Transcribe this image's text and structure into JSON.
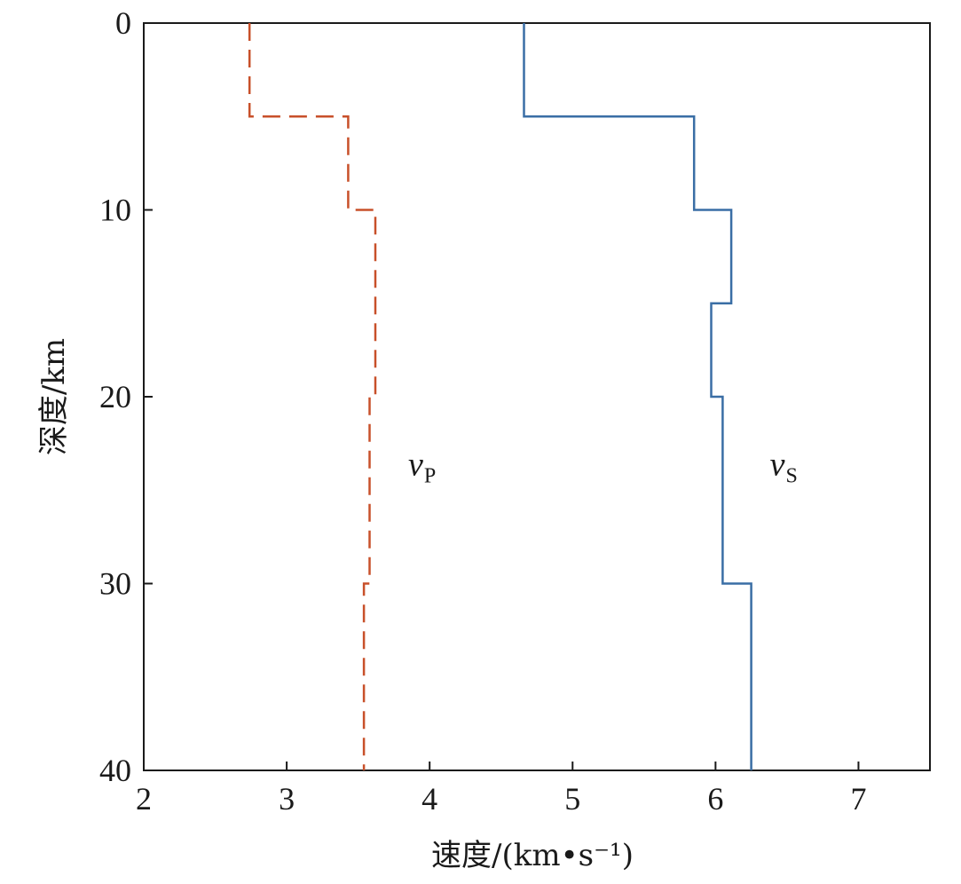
{
  "chart_data": {
    "type": "line",
    "xlabel": "速度/(km•s⁻¹)",
    "ylabel": "深度/km",
    "xlim": [
      2,
      7.5
    ],
    "ylim": [
      0,
      40
    ],
    "y_inverted": true,
    "xticks": [
      2,
      3,
      4,
      5,
      6,
      7
    ],
    "yticks": [
      0,
      10,
      20,
      30,
      40
    ],
    "grid": false,
    "series": [
      {
        "name": "vP",
        "label_main": "v",
        "label_sub": "P",
        "label_pos": [
          3.85,
          24.2
        ],
        "style": "dashed",
        "color": "#c8502a",
        "steps": [
          {
            "top": 0,
            "bottom": 5,
            "velocity": 2.74
          },
          {
            "top": 5,
            "bottom": 10,
            "velocity": 3.43
          },
          {
            "top": 10,
            "bottom": 20,
            "velocity": 3.62
          },
          {
            "top": 20,
            "bottom": 30,
            "velocity": 3.58
          },
          {
            "top": 30,
            "bottom": 40,
            "velocity": 3.54
          }
        ]
      },
      {
        "name": "vS",
        "label_main": "v",
        "label_sub": "S",
        "label_pos": [
          6.38,
          24.2
        ],
        "style": "solid",
        "color": "#3a6ea5",
        "steps": [
          {
            "top": 0,
            "bottom": 5,
            "velocity": 4.66
          },
          {
            "top": 5,
            "bottom": 10,
            "velocity": 5.85
          },
          {
            "top": 10,
            "bottom": 15,
            "velocity": 6.11
          },
          {
            "top": 15,
            "bottom": 20,
            "velocity": 5.97
          },
          {
            "top": 20,
            "bottom": 30,
            "velocity": 6.05
          },
          {
            "top": 30,
            "bottom": 40,
            "velocity": 6.25
          }
        ]
      }
    ]
  }
}
